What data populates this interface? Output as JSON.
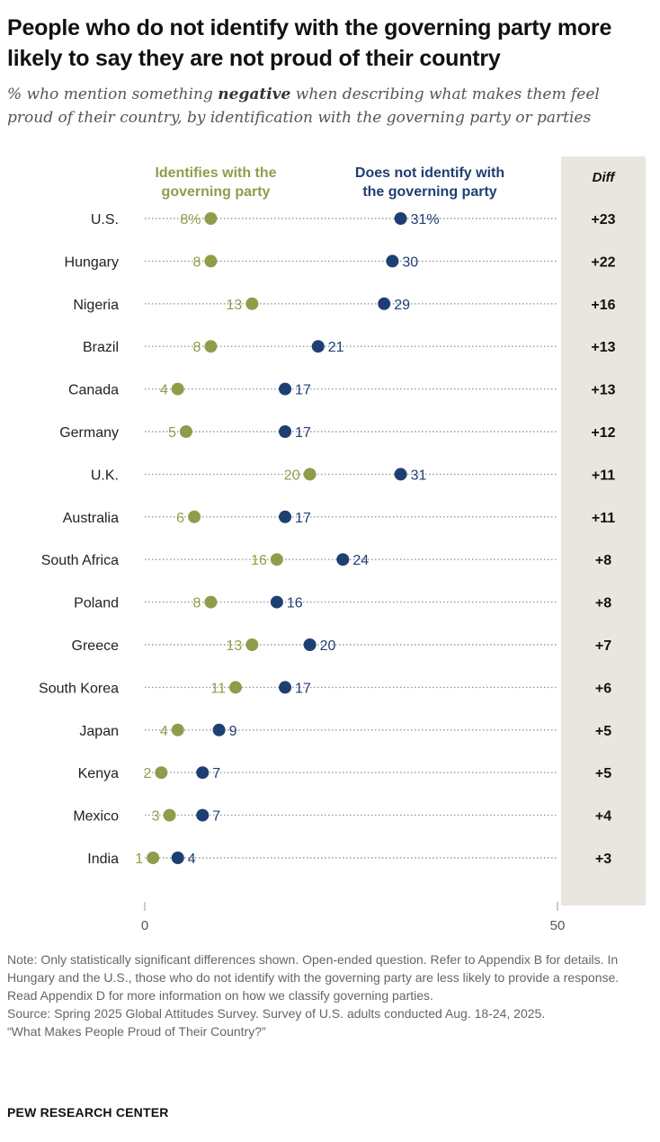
{
  "title": "People who do not identify with the governing party more likely to say they are not proud of their country",
  "subtitle_pre": "% who mention something ",
  "subtitle_bold": "negative",
  "subtitle_post": " when describing what makes them feel proud of their country, by identification with the governing party or parties",
  "chart_data": {
    "type": "dot",
    "series": [
      {
        "name": "Identifies with the governing party",
        "label_lines": [
          "Identifies with the",
          "governing party"
        ],
        "color": "#8d9e4b",
        "values": [
          8,
          8,
          13,
          8,
          4,
          5,
          20,
          6,
          16,
          8,
          13,
          11,
          4,
          2,
          3,
          1
        ]
      },
      {
        "name": "Does not identify with the governing party",
        "label_lines": [
          "Does not identify with",
          "the governing party"
        ],
        "color": "#1f3f73",
        "values": [
          31,
          30,
          29,
          21,
          17,
          17,
          31,
          17,
          24,
          16,
          20,
          17,
          9,
          7,
          7,
          4
        ]
      }
    ],
    "categories": [
      "U.S.",
      "Hungary",
      "Nigeria",
      "Brazil",
      "Canada",
      "Germany",
      "U.K.",
      "Australia",
      "South Africa",
      "Poland",
      "Greece",
      "South Korea",
      "Japan",
      "Kenya",
      "Mexico",
      "India"
    ],
    "value_labels": {
      "identifies": [
        "8%",
        "8",
        "13",
        "8",
        "4",
        "5",
        "20",
        "6",
        "16",
        "8",
        "13",
        "11",
        "4",
        "2",
        "3",
        "1"
      ],
      "not_identify": [
        "31%",
        "30",
        "29",
        "21",
        "17",
        "17",
        "31",
        "17",
        "24",
        "16",
        "20",
        "17",
        "9",
        "7",
        "7",
        "4"
      ]
    },
    "diff_header": "Diff",
    "diff": [
      "+23",
      "+22",
      "+16",
      "+13",
      "+13",
      "+12",
      "+11",
      "+11",
      "+8",
      "+8",
      "+7",
      "+6",
      "+5",
      "+5",
      "+4",
      "+3"
    ],
    "xlim": [
      0,
      50
    ],
    "xticks": [
      "0",
      "50"
    ],
    "diff_bg": "#e9e6df"
  },
  "notes": [
    "Note: Only statistically significant differences shown. Open-ended question. Refer to Appendix B for details. In Hungary and the U.S., those who do not identify with the governing party are less likely to provide a response. Read Appendix D for more information on how we classify governing parties.",
    "Source: Spring 2025 Global Attitudes Survey. Survey of U.S. adults conducted Aug. 18-24, 2025.",
    "“What Makes People Proud of Their Country?”"
  ],
  "brand": "PEW RESEARCH CENTER"
}
